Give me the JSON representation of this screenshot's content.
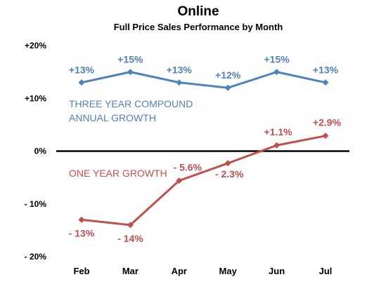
{
  "chart_data": {
    "type": "line",
    "title": "Online",
    "subtitle": "Full Price Sales Performance by Month",
    "categories": [
      "Feb",
      "Mar",
      "Apr",
      "May",
      "Jun",
      "Jul"
    ],
    "ylim": [
      -20,
      20
    ],
    "yticks": [
      20,
      10,
      0,
      -10,
      -20
    ],
    "ytick_labels": [
      "+20%",
      "+10%",
      "0%",
      "- 10%",
      "- 20%"
    ],
    "grid": false,
    "series": [
      {
        "name": "THREE YEAR COMPOUND ANNUAL GROWTH",
        "name_lines": [
          "THREE YEAR COMPOUND",
          "ANNUAL GROWTH"
        ],
        "color": "#4F81BD",
        "values": [
          13,
          15,
          13,
          12,
          15,
          13
        ],
        "labels": [
          "+13%",
          "+15%",
          "+13%",
          "+12%",
          "+15%",
          "+13%"
        ]
      },
      {
        "name": "ONE YEAR GROWTH",
        "name_lines": [
          "ONE YEAR GROWTH"
        ],
        "color": "#C0504D",
        "values": [
          -13,
          -14,
          -5.6,
          -2.3,
          1.1,
          2.9
        ],
        "labels": [
          "- 13%",
          "- 14%",
          "- 5.6%",
          "- 2.3%",
          "+1.1%",
          "+2.9%"
        ]
      }
    ]
  }
}
